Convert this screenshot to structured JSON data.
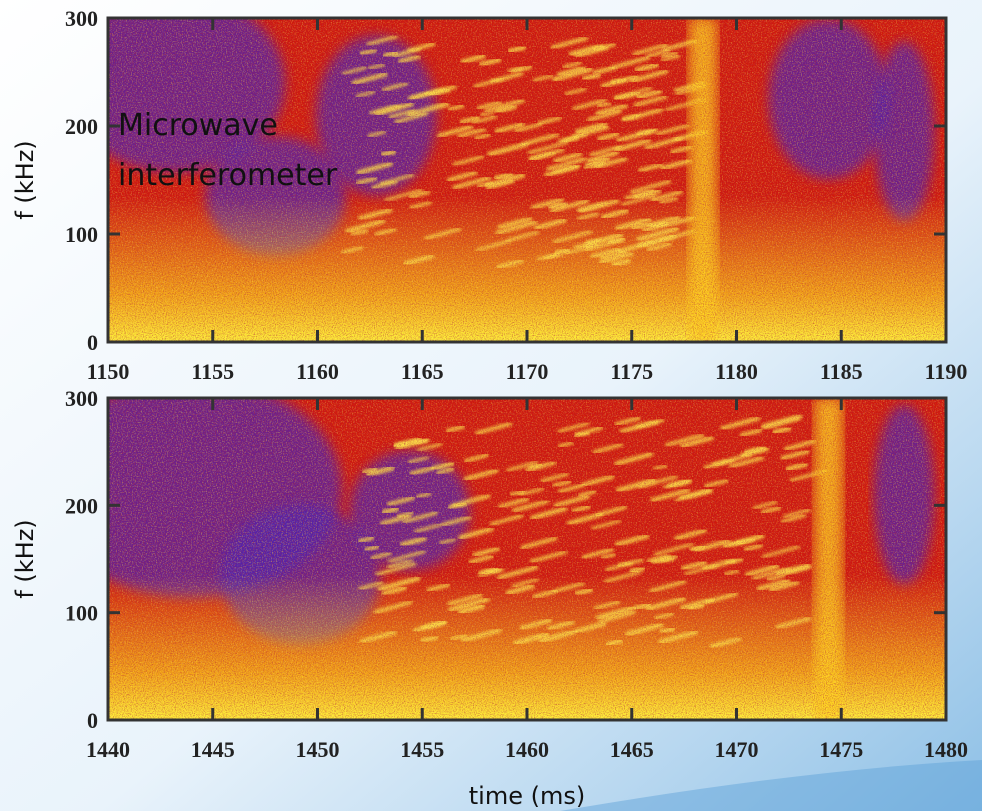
{
  "chart_data": [
    {
      "type": "spectrogram",
      "xlim": [
        1150,
        1190
      ],
      "xticks": [
        1150,
        1155,
        1160,
        1165,
        1170,
        1175,
        1180,
        1185,
        1190
      ],
      "ylim": [
        0,
        300
      ],
      "yticks": [
        0,
        100,
        200,
        300
      ],
      "ylabel": "f (kHz)",
      "annotation_lines": [
        "Microwave",
        "interferometer"
      ]
    },
    {
      "type": "spectrogram",
      "xlim": [
        1440,
        1480
      ],
      "xticks": [
        1440,
        1445,
        1450,
        1455,
        1460,
        1465,
        1470,
        1475,
        1480
      ],
      "ylim": [
        0,
        300
      ],
      "yticks": [
        0,
        100,
        200,
        300
      ],
      "ylabel": "f (kHz)",
      "xlabel": "time (ms)"
    }
  ]
}
